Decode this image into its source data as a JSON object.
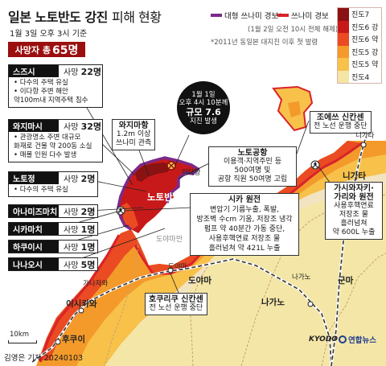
{
  "header": {
    "title_main": "일본 노토반도 강진",
    "title_suffix": "피해 현황",
    "subtitle": "1월 3일 오후 3시 기준"
  },
  "legend": {
    "tsunami_major": "대형 쓰나미 경보*",
    "tsunami_warning": "쓰나미 경보",
    "note_lifted": "(1월 2일 오전 10시 전체 해제)",
    "note_footnote": "*2011년 동일본 대지진 이후 첫 발령",
    "colors": {
      "tsunami_major": "#7b2a8c",
      "tsunami_warning": "#d9232a"
    }
  },
  "intensity_scale": [
    {
      "label": "진도7",
      "color": "#8a1212"
    },
    {
      "label": "진도6 강",
      "color": "#c8191a"
    },
    {
      "label": "진도6 약",
      "color": "#ea4b22"
    },
    {
      "label": "진도5 강",
      "color": "#f39a2b"
    },
    {
      "label": "진도5 약",
      "color": "#f7c14a"
    },
    {
      "label": "진도4",
      "color": "#f4e5a4"
    }
  ],
  "death_total": {
    "label": "사망자 총",
    "value": "65명"
  },
  "towns": [
    {
      "name": "스즈시",
      "death_label": "사망",
      "death_value": "22명",
      "details": [
        "• 다수의 주택 유실",
        "• 이다항 주변 해안",
        "  약100m내 지역주택 침수"
      ]
    },
    {
      "name": "와지마시",
      "death_label": "사망",
      "death_value": "32명",
      "details": [
        "• 관광명소 주변 대규모",
        "  화재로 건물 약 200동 소실",
        "• 매몰 인원 다수 발생"
      ]
    },
    {
      "name": "노토정",
      "death_label": "사망",
      "death_value": "2명",
      "details": [
        "• 다수의 주택 유실"
      ]
    },
    {
      "name": "아나미즈마치",
      "death_label": "사망",
      "death_value": "2명",
      "details": []
    },
    {
      "name": "시카마치",
      "death_label": "사망",
      "death_value": "1명",
      "details": []
    },
    {
      "name": "하쿠이시",
      "death_label": "사망",
      "death_value": "1명",
      "details": []
    },
    {
      "name": "나나오시",
      "death_label": "사망",
      "death_value": "5명",
      "details": []
    }
  ],
  "earthquake": {
    "date": "1월 1일",
    "time": "오후 4시 10분께",
    "magnitude": "규모 7.6",
    "desc": "지진 발생"
  },
  "callouts": {
    "wajima_port": {
      "title": "와지마항",
      "lines": [
        "1.2m 이상",
        "쓰나미 관측"
      ]
    },
    "noto_airport": {
      "title": "노토공항",
      "lines": [
        "이용객·지역주민 등",
        "500여명 및",
        "공항 직원 50여명 고립"
      ]
    },
    "shika_plant": {
      "title": "시카 원전",
      "lines": [
        "변압기 기름누출, 폭발,",
        "방조벽 수cm 기움, 저장조 냉각",
        "펌프 약 40분간 가동 중단,",
        "사용후핵연료 저장조 물",
        "흘러넘쳐 약 421L 누출"
      ]
    },
    "joetsu_shinkansen": {
      "title": "조에쓰 신칸센",
      "lines": [
        "전 노선 운행 중단"
      ]
    },
    "kashiwazaki": {
      "title": "가시와자키·",
      "title2": "가리와 원전",
      "lines": [
        "사용후핵연료",
        "저장조 물",
        "흘러넘쳐",
        "약 600L 누출"
      ]
    },
    "hokuriku_shinkansen": {
      "title": "호쿠리쿠 신칸센",
      "lines": [
        "전 노선 운행 중단"
      ]
    }
  },
  "places": {
    "noto_peninsula": "노토반도",
    "ida_port": "이다항",
    "toyama_bay": "도야마만",
    "toyama": "도야마",
    "ishikawa": "이시카와",
    "kanazawa": "가나자와",
    "fukui": "후쿠이",
    "nagano": "나가노",
    "gunma": "군마",
    "niigata_pref": "니가타",
    "niigata_city": "니가타",
    "nagano_city": "나가노",
    "toyama_city": "도야마"
  },
  "scale_label": "10km",
  "credit": "김영은 기자  20240103",
  "sources": {
    "kyodo": "KYODO",
    "yonhap": "연합뉴스"
  }
}
